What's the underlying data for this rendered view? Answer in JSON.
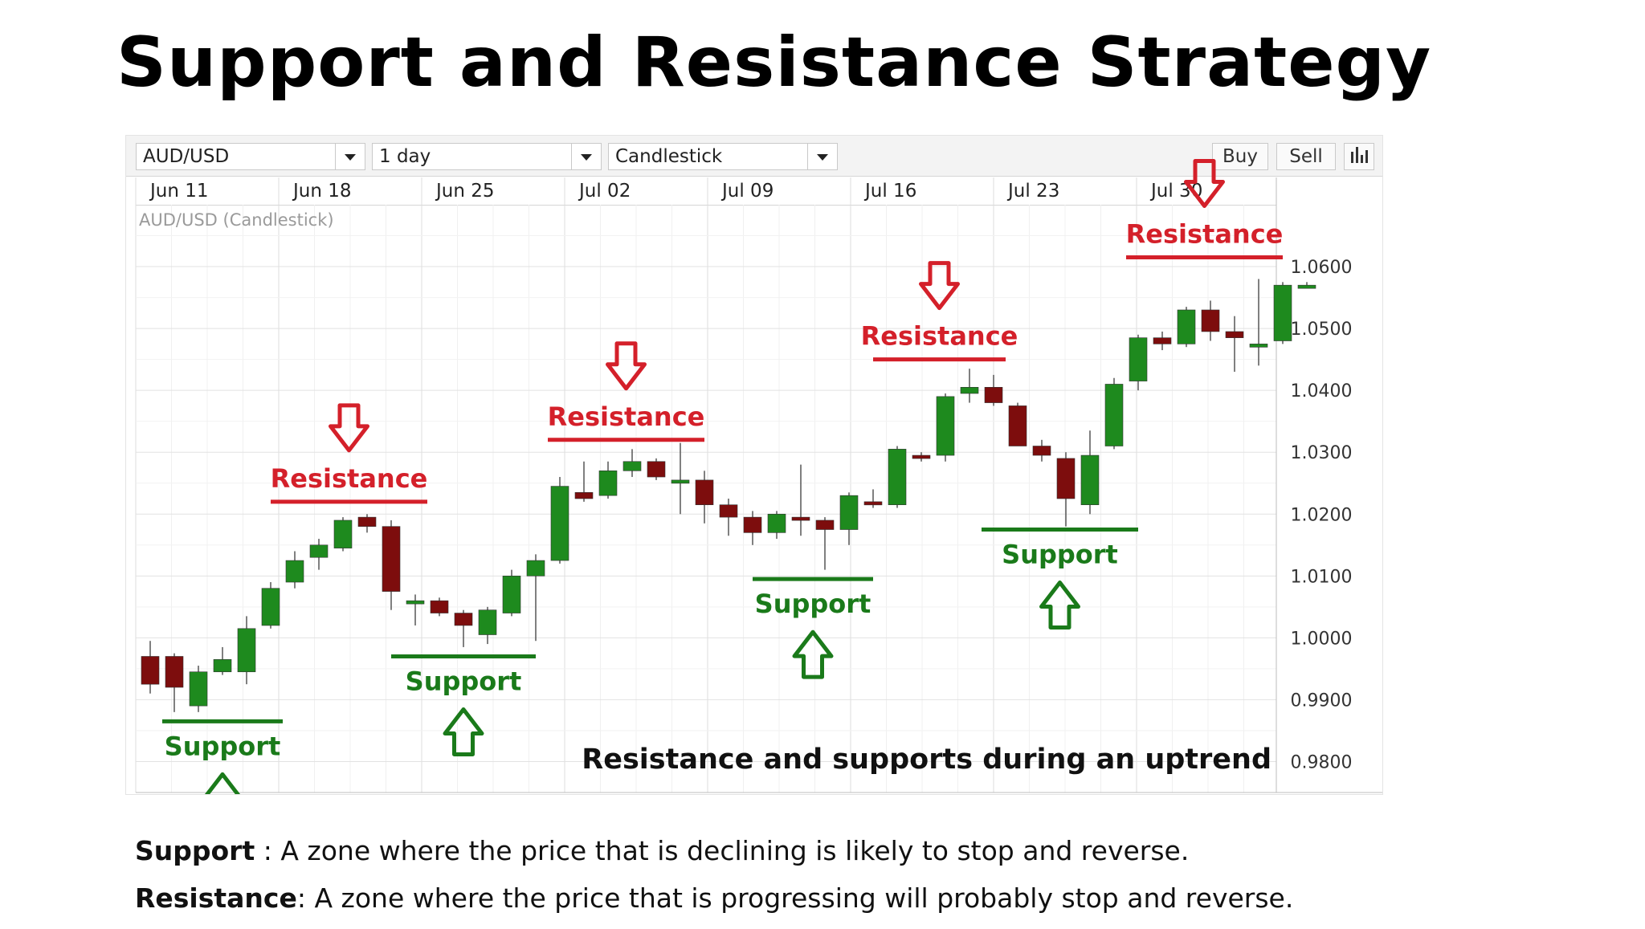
{
  "title": "Support and Resistance Strategy",
  "toolbar": {
    "symbol": "AUD/USD",
    "interval": "1 day",
    "chart_type": "Candlestick",
    "buy_label": "Buy",
    "sell_label": "Sell"
  },
  "chart_label": "AUD/USD (Candlestick)",
  "overlay_caption": "Resistance and supports during an uptrend",
  "colors": {
    "up": "#1e8a1e",
    "down": "#7d0d0d",
    "resistance": "#d4202a",
    "support": "#1a7a1a"
  },
  "chart_data": {
    "type": "candlestick",
    "date_labels": [
      "Jun 11",
      "Jun 18",
      "Jun 25",
      "Jul 02",
      "Jul 09",
      "Jul 16",
      "Jul 23",
      "Jul 30"
    ],
    "y_ticks": [
      "1.0600",
      "1.0500",
      "1.0400",
      "1.0300",
      "1.0200",
      "1.0100",
      "1.0000",
      "0.9900",
      "0.9800"
    ],
    "ylim": [
      0.975,
      1.07
    ],
    "candles": [
      {
        "o": 0.997,
        "h": 0.9995,
        "l": 0.991,
        "c": 0.9925
      },
      {
        "o": 0.997,
        "h": 0.9975,
        "l": 0.988,
        "c": 0.992
      },
      {
        "o": 0.989,
        "h": 0.9955,
        "l": 0.988,
        "c": 0.9945
      },
      {
        "o": 0.9945,
        "h": 0.9985,
        "l": 0.994,
        "c": 0.9965
      },
      {
        "o": 0.9945,
        "h": 1.0035,
        "l": 0.9925,
        "c": 1.0015
      },
      {
        "o": 1.002,
        "h": 1.009,
        "l": 1.0015,
        "c": 1.008
      },
      {
        "o": 1.009,
        "h": 1.014,
        "l": 1.008,
        "c": 1.0125
      },
      {
        "o": 1.013,
        "h": 1.016,
        "l": 1.011,
        "c": 1.015
      },
      {
        "o": 1.0145,
        "h": 1.0195,
        "l": 1.014,
        "c": 1.019
      },
      {
        "o": 1.0195,
        "h": 1.02,
        "l": 1.017,
        "c": 1.018
      },
      {
        "o": 1.018,
        "h": 1.019,
        "l": 1.0045,
        "c": 1.0075
      },
      {
        "o": 1.006,
        "h": 1.007,
        "l": 1.002,
        "c": 1.006
      },
      {
        "o": 1.006,
        "h": 1.0065,
        "l": 1.0035,
        "c": 1.004
      },
      {
        "o": 1.004,
        "h": 1.0045,
        "l": 0.9985,
        "c": 1.002
      },
      {
        "o": 1.0005,
        "h": 1.005,
        "l": 0.999,
        "c": 1.0045
      },
      {
        "o": 1.004,
        "h": 1.011,
        "l": 1.0035,
        "c": 1.01
      },
      {
        "o": 1.01,
        "h": 1.0135,
        "l": 0.9995,
        "c": 1.0125
      },
      {
        "o": 1.0125,
        "h": 1.026,
        "l": 1.012,
        "c": 1.0245
      },
      {
        "o": 1.0235,
        "h": 1.0285,
        "l": 1.022,
        "c": 1.0225
      },
      {
        "o": 1.023,
        "h": 1.0285,
        "l": 1.0225,
        "c": 1.027
      },
      {
        "o": 1.027,
        "h": 1.0305,
        "l": 1.026,
        "c": 1.0285
      },
      {
        "o": 1.0285,
        "h": 1.029,
        "l": 1.0255,
        "c": 1.026
      },
      {
        "o": 1.0255,
        "h": 1.0315,
        "l": 1.02,
        "c": 1.0255
      },
      {
        "o": 1.0255,
        "h": 1.027,
        "l": 1.0185,
        "c": 1.0215
      },
      {
        "o": 1.0215,
        "h": 1.0225,
        "l": 1.0165,
        "c": 1.0195
      },
      {
        "o": 1.0195,
        "h": 1.0205,
        "l": 1.015,
        "c": 1.017
      },
      {
        "o": 1.017,
        "h": 1.0205,
        "l": 1.016,
        "c": 1.02
      },
      {
        "o": 1.0195,
        "h": 1.028,
        "l": 1.0165,
        "c": 1.019
      },
      {
        "o": 1.019,
        "h": 1.0195,
        "l": 1.011,
        "c": 1.0175
      },
      {
        "o": 1.0175,
        "h": 1.0235,
        "l": 1.015,
        "c": 1.023
      },
      {
        "o": 1.022,
        "h": 1.024,
        "l": 1.021,
        "c": 1.0215
      },
      {
        "o": 1.0215,
        "h": 1.031,
        "l": 1.021,
        "c": 1.0305
      },
      {
        "o": 1.0295,
        "h": 1.03,
        "l": 1.0285,
        "c": 1.029
      },
      {
        "o": 1.0295,
        "h": 1.0395,
        "l": 1.0285,
        "c": 1.039
      },
      {
        "o": 1.0395,
        "h": 1.0435,
        "l": 1.038,
        "c": 1.0405
      },
      {
        "o": 1.0405,
        "h": 1.0425,
        "l": 1.0375,
        "c": 1.038
      },
      {
        "o": 1.0375,
        "h": 1.038,
        "l": 1.031,
        "c": 1.031
      },
      {
        "o": 1.031,
        "h": 1.032,
        "l": 1.0285,
        "c": 1.0295
      },
      {
        "o": 1.029,
        "h": 1.03,
        "l": 1.018,
        "c": 1.0225
      },
      {
        "o": 1.0215,
        "h": 1.0335,
        "l": 1.02,
        "c": 1.0295
      },
      {
        "o": 1.031,
        "h": 1.042,
        "l": 1.0305,
        "c": 1.041
      },
      {
        "o": 1.0415,
        "h": 1.049,
        "l": 1.04,
        "c": 1.0485
      },
      {
        "o": 1.0485,
        "h": 1.0495,
        "l": 1.0465,
        "c": 1.0475
      },
      {
        "o": 1.0475,
        "h": 1.0535,
        "l": 1.047,
        "c": 1.053
      },
      {
        "o": 1.053,
        "h": 1.0545,
        "l": 1.048,
        "c": 1.0495
      },
      {
        "o": 1.0495,
        "h": 1.052,
        "l": 1.043,
        "c": 1.0485
      },
      {
        "o": 1.0475,
        "h": 1.058,
        "l": 1.044,
        "c": 1.0475
      },
      {
        "o": 1.048,
        "h": 1.0575,
        "l": 1.0475,
        "c": 1.057
      },
      {
        "o": 1.057,
        "h": 1.0575,
        "l": 1.0565,
        "c": 1.057
      }
    ],
    "annotations": [
      {
        "kind": "support",
        "label": "Support",
        "x_start": 0.5,
        "x_end": 5.5,
        "y": 0.9865
      },
      {
        "kind": "resistance",
        "label": "Resistance",
        "x_start": 5.0,
        "x_end": 11.5,
        "y": 1.022
      },
      {
        "kind": "support",
        "label": "Support",
        "x_start": 10.0,
        "x_end": 16.0,
        "y": 0.997
      },
      {
        "kind": "resistance",
        "label": "Resistance",
        "x_start": 16.5,
        "x_end": 23.0,
        "y": 1.032
      },
      {
        "kind": "support",
        "label": "Support",
        "x_start": 25.0,
        "x_end": 30.0,
        "y": 1.0095
      },
      {
        "kind": "resistance",
        "label": "Resistance",
        "x_start": 30.0,
        "x_end": 35.5,
        "y": 1.045
      },
      {
        "kind": "support",
        "label": "Support",
        "x_start": 34.5,
        "x_end": 41.0,
        "y": 1.0175
      },
      {
        "kind": "resistance",
        "label": "Resistance",
        "x_start": 40.5,
        "x_end": 47.0,
        "y": 1.0615
      }
    ]
  },
  "captions": [
    {
      "term": "Support",
      "text": " : A zone where the price that is declining is likely to stop and reverse."
    },
    {
      "term": "Resistance",
      "text": ": A zone where the price that is progressing will probably stop and reverse."
    }
  ]
}
